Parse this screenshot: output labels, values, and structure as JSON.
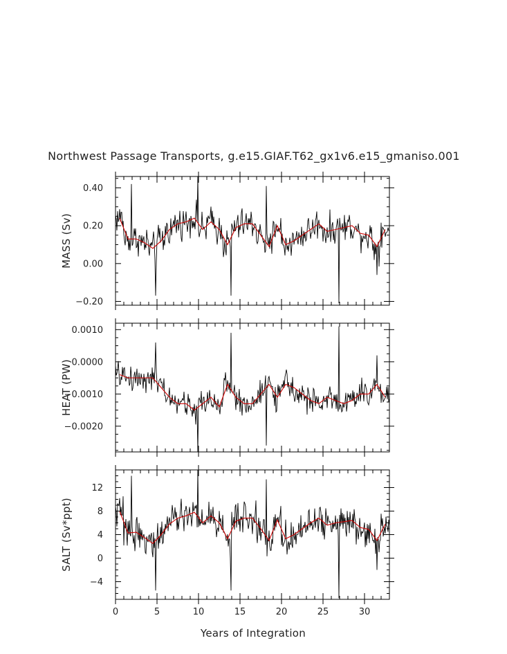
{
  "title": "Northwest Passage Transports, g.e15.GIAF.T62_gx1v6.e15_gmaniso.001",
  "xlabel": "Years of Integration",
  "colors": {
    "monthly": "#000000",
    "annual": "#cc0000",
    "axes": "#000000"
  },
  "chart_data": {
    "type": "line",
    "title": "Northwest Passage Transports, g.e15.GIAF.T62_gx1v6.e15_gmaniso.001",
    "xlabel": "Years of Integration",
    "xlim": [
      0,
      33
    ],
    "xticks": [
      0,
      5,
      10,
      15,
      20,
      25,
      30
    ],
    "xtick_labels": [
      "0",
      "5",
      "10",
      "15",
      "20",
      "25",
      "30"
    ],
    "annual_x": [
      0.5,
      1.5,
      2.5,
      3.5,
      4.5,
      5.5,
      6.5,
      7.5,
      8.5,
      9.5,
      10.5,
      11.5,
      12.5,
      13.5,
      14.5,
      15.5,
      16.5,
      17.5,
      18.5,
      19.5,
      20.5,
      21.5,
      22.5,
      23.5,
      24.5,
      25.5,
      26.5,
      27.5,
      28.5,
      29.5,
      30.5,
      31.5,
      32.5
    ],
    "panels": [
      {
        "ylabel": "MASS (Sv)",
        "ylim": [
          -0.22,
          0.46
        ],
        "yticks": [
          -0.2,
          0.0,
          0.2,
          0.4
        ],
        "ytick_labels": [
          "−0.20",
          "0.00",
          "0.20",
          "0.40"
        ],
        "annual_mean": [
          0.24,
          0.13,
          0.13,
          0.11,
          0.08,
          0.12,
          0.18,
          0.21,
          0.22,
          0.24,
          0.18,
          0.22,
          0.18,
          0.1,
          0.19,
          0.21,
          0.21,
          0.15,
          0.09,
          0.2,
          0.1,
          0.12,
          0.15,
          0.18,
          0.21,
          0.17,
          0.18,
          0.19,
          0.2,
          0.16,
          0.15,
          0.09,
          0.18
        ],
        "amplitude": 0.085,
        "spikes": [
          [
            1.9,
            0.42
          ],
          [
            4.8,
            -0.17
          ],
          [
            9.9,
            0.46
          ],
          [
            13.9,
            -0.17
          ],
          [
            18.2,
            0.41
          ],
          [
            26.9,
            -0.21
          ],
          [
            31.5,
            -0.06
          ]
        ]
      },
      {
        "ylabel": "HEAT (PW)",
        "ylim": [
          -0.0028,
          0.0012
        ],
        "yticks": [
          -0.002,
          -0.001,
          0.0,
          0.001
        ],
        "ytick_labels": [
          "−0.0020",
          "−0.0010",
          "0.0000",
          "0.0010"
        ],
        "annual_mean": [
          -0.0004,
          -0.0005,
          -0.0005,
          -0.0005,
          -0.0005,
          -0.0008,
          -0.0011,
          -0.0013,
          -0.0013,
          -0.0015,
          -0.0013,
          -0.0011,
          -0.0014,
          -0.0007,
          -0.0011,
          -0.0013,
          -0.0013,
          -0.001,
          -0.0007,
          -0.0011,
          -0.0007,
          -0.0008,
          -0.001,
          -0.0012,
          -0.0013,
          -0.0011,
          -0.0012,
          -0.0013,
          -0.0012,
          -0.001,
          -0.001,
          -0.0007,
          -0.0011
        ],
        "amplitude": 0.00042,
        "spikes": [
          [
            4.8,
            0.0006
          ],
          [
            9.9,
            -0.0028
          ],
          [
            13.9,
            0.0009
          ],
          [
            18.2,
            -0.0026
          ],
          [
            26.9,
            0.0011
          ],
          [
            31.5,
            0.0002
          ]
        ]
      },
      {
        "ylabel": "SALT (Sv*ppt)",
        "ylim": [
          -7.0,
          15.0
        ],
        "yticks": [
          -4,
          0,
          4,
          8,
          12
        ],
        "ytick_labels": [
          "−4",
          "0",
          "4",
          "8",
          "12"
        ],
        "annual_mean": [
          8.0,
          4.3,
          4.4,
          3.5,
          2.5,
          4.0,
          5.8,
          6.8,
          7.2,
          7.8,
          6.0,
          7.2,
          6.0,
          3.3,
          6.3,
          6.8,
          6.8,
          5.0,
          3.0,
          6.5,
          3.3,
          4.0,
          5.0,
          6.0,
          6.8,
          5.6,
          6.0,
          6.2,
          6.4,
          5.2,
          4.9,
          3.0,
          5.8
        ],
        "amplitude": 2.8,
        "spikes": [
          [
            1.9,
            14.0
          ],
          [
            4.8,
            -5.5
          ],
          [
            9.9,
            15.0
          ],
          [
            13.9,
            -5.5
          ],
          [
            18.2,
            13.4
          ],
          [
            26.9,
            -6.8
          ],
          [
            31.5,
            -2.0
          ]
        ]
      }
    ]
  }
}
